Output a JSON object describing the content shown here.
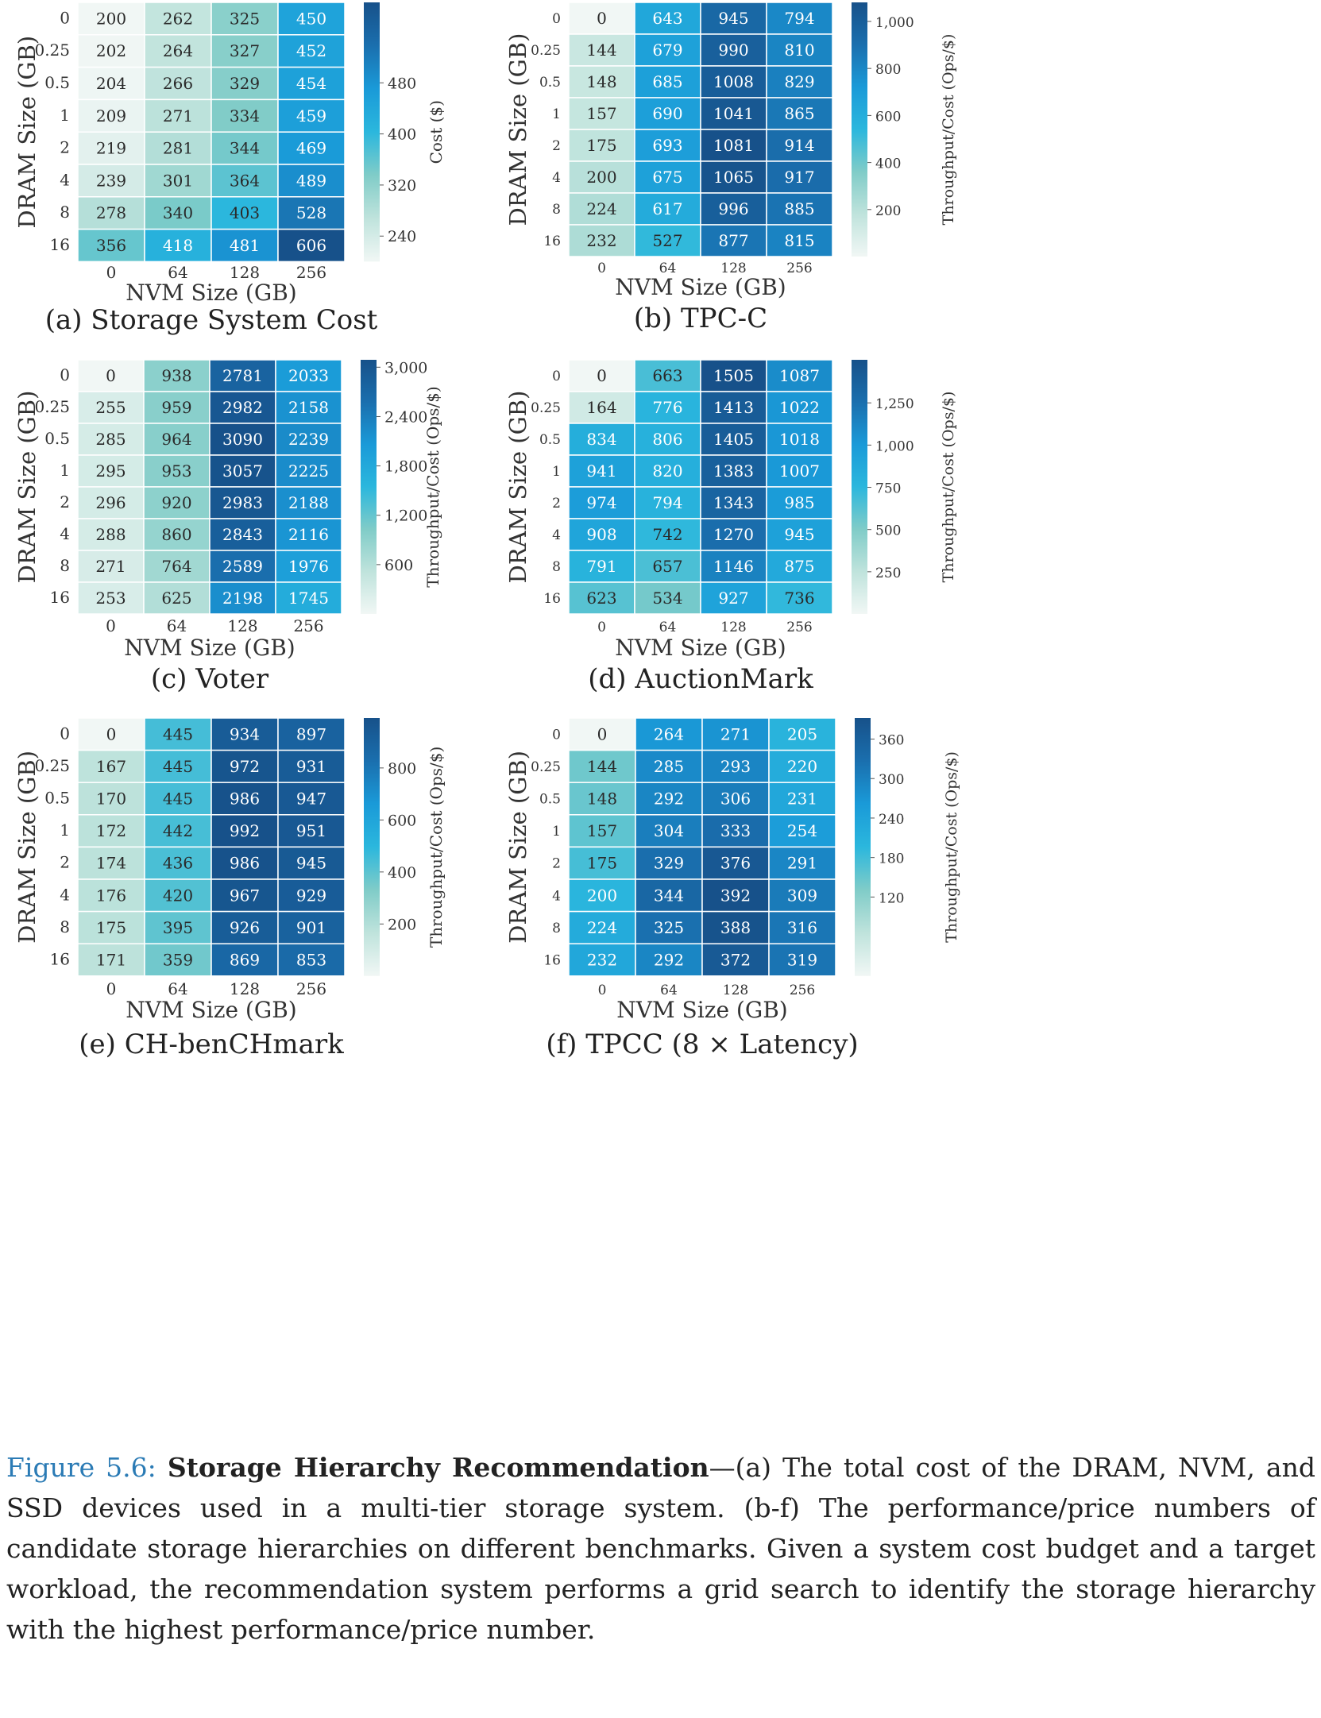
{
  "colormap": [
    "#f1f7f5",
    "#bfe3dc",
    "#80ccc8",
    "#2bb7dd",
    "#1a9ad8",
    "#1a6fae",
    "#17518a"
  ],
  "chart_data": [
    {
      "type": "heatmap",
      "caption": "(a) Storage System Cost",
      "xlabel": "NVM Size (GB)",
      "ylabel": "DRAM Size (GB)",
      "colorbar_label": "Cost ($)",
      "x": [
        "0",
        "64",
        "128",
        "256"
      ],
      "y": [
        "0",
        "0.25",
        "0.5",
        "1",
        "2",
        "4",
        "8",
        "16"
      ],
      "colorbar_ticks": [
        "240",
        "320",
        "400",
        "480"
      ],
      "cbar_range": [
        200,
        606
      ],
      "values": [
        [
          200,
          262,
          325,
          450
        ],
        [
          202,
          264,
          327,
          452
        ],
        [
          204,
          266,
          329,
          454
        ],
        [
          209,
          271,
          334,
          459
        ],
        [
          219,
          281,
          344,
          469
        ],
        [
          239,
          301,
          364,
          489
        ],
        [
          278,
          340,
          403,
          528
        ],
        [
          356,
          418,
          481,
          606
        ]
      ]
    },
    {
      "type": "heatmap",
      "caption": "(b) TPC-C",
      "xlabel": "NVM Size (GB)",
      "ylabel": "DRAM Size (GB)",
      "colorbar_label": "Throughput/Cost (Ops/$)",
      "x": [
        "0",
        "64",
        "128",
        "256"
      ],
      "y": [
        "0",
        "0.25",
        "0.5",
        "1",
        "2",
        "4",
        "8",
        "16"
      ],
      "colorbar_ticks": [
        "200",
        "400",
        "600",
        "800",
        "1,000"
      ],
      "cbar_range": [
        0,
        1081
      ],
      "values": [
        [
          0,
          643,
          945,
          794
        ],
        [
          144,
          679,
          990,
          810
        ],
        [
          148,
          685,
          1008,
          829
        ],
        [
          157,
          690,
          1041,
          865
        ],
        [
          175,
          693,
          1081,
          914
        ],
        [
          200,
          675,
          1065,
          917
        ],
        [
          224,
          617,
          996,
          885
        ],
        [
          232,
          527,
          877,
          815
        ]
      ]
    },
    {
      "type": "heatmap",
      "caption": "(c) Voter",
      "xlabel": "NVM Size (GB)",
      "ylabel": "DRAM Size (GB)",
      "colorbar_label": "Throughput/Cost (Ops/$)",
      "x": [
        "0",
        "64",
        "128",
        "256"
      ],
      "y": [
        "0",
        "0.25",
        "0.5",
        "1",
        "2",
        "4",
        "8",
        "16"
      ],
      "colorbar_ticks": [
        "600",
        "1,200",
        "1,800",
        "2,400",
        "3,000"
      ],
      "cbar_range": [
        0,
        3090
      ],
      "values": [
        [
          0,
          938,
          2781,
          2033
        ],
        [
          255,
          959,
          2982,
          2158
        ],
        [
          285,
          964,
          3090,
          2239
        ],
        [
          295,
          953,
          3057,
          2225
        ],
        [
          296,
          920,
          2983,
          2188
        ],
        [
          288,
          860,
          2843,
          2116
        ],
        [
          271,
          764,
          2589,
          1976
        ],
        [
          253,
          625,
          2198,
          1745
        ]
      ]
    },
    {
      "type": "heatmap",
      "caption": "(d) AuctionMark",
      "xlabel": "NVM Size (GB)",
      "ylabel": "DRAM Size (GB)",
      "colorbar_label": "Throughput/Cost (Ops/$)",
      "x": [
        "0",
        "64",
        "128",
        "256"
      ],
      "y": [
        "0",
        "0.25",
        "0.5",
        "1",
        "2",
        "4",
        "8",
        "16"
      ],
      "colorbar_ticks": [
        "250",
        "500",
        "750",
        "1,000",
        "1,250"
      ],
      "cbar_range": [
        0,
        1505
      ],
      "values": [
        [
          0,
          663,
          1505,
          1087
        ],
        [
          164,
          776,
          1413,
          1022
        ],
        [
          834,
          806,
          1405,
          1018
        ],
        [
          941,
          820,
          1383,
          1007
        ],
        [
          974,
          794,
          1343,
          985
        ],
        [
          908,
          742,
          1270,
          945
        ],
        [
          791,
          657,
          1146,
          875
        ],
        [
          623,
          534,
          927,
          736
        ]
      ]
    },
    {
      "type": "heatmap",
      "caption": "(e) CH-benCHmark",
      "xlabel": "NVM Size (GB)",
      "ylabel": "DRAM Size (GB)",
      "colorbar_label": "Throughput/Cost (Ops/$)",
      "x": [
        "0",
        "64",
        "128",
        "256"
      ],
      "y": [
        "0",
        "0.25",
        "0.5",
        "1",
        "2",
        "4",
        "8",
        "16"
      ],
      "colorbar_ticks": [
        "200",
        "400",
        "600",
        "800"
      ],
      "cbar_range": [
        0,
        992
      ],
      "values": [
        [
          0,
          445,
          934,
          897
        ],
        [
          167,
          445,
          972,
          931
        ],
        [
          170,
          445,
          986,
          947
        ],
        [
          172,
          442,
          992,
          951
        ],
        [
          174,
          436,
          986,
          945
        ],
        [
          176,
          420,
          967,
          929
        ],
        [
          175,
          395,
          926,
          901
        ],
        [
          171,
          359,
          869,
          853
        ]
      ]
    },
    {
      "type": "heatmap",
      "caption": "(f) TPCC (8 × Latency)",
      "xlabel": "NVM Size (GB)",
      "ylabel": "DRAM Size (GB)",
      "colorbar_label": "Throughput/Cost (Ops/$)",
      "x": [
        "0",
        "64",
        "128",
        "256"
      ],
      "y": [
        "0",
        "0.25",
        "0.5",
        "1",
        "2",
        "4",
        "8",
        "16"
      ],
      "colorbar_ticks": [
        "120",
        "180",
        "240",
        "300",
        "360"
      ],
      "cbar_range": [
        0,
        392
      ],
      "values": [
        [
          0,
          264,
          271,
          205
        ],
        [
          144,
          285,
          293,
          220
        ],
        [
          148,
          292,
          306,
          231
        ],
        [
          157,
          304,
          333,
          254
        ],
        [
          175,
          329,
          376,
          291
        ],
        [
          200,
          344,
          392,
          309
        ],
        [
          224,
          325,
          388,
          316
        ],
        [
          232,
          292,
          372,
          319
        ]
      ]
    }
  ],
  "figure_caption": {
    "lead": "Figure 5.6: ",
    "title": "Storage Hierarchy Recommendation",
    "body": "—(a) The total cost of the DRAM, NVM, and SSD devices used in a multi-tier storage system. (b-f) The performance/price numbers of candidate storage hierarchies on different benchmarks. Given a system cost budget and a target workload, the recommendation system performs a grid search to identify the storage hierarchy with the highest performance/price number."
  }
}
